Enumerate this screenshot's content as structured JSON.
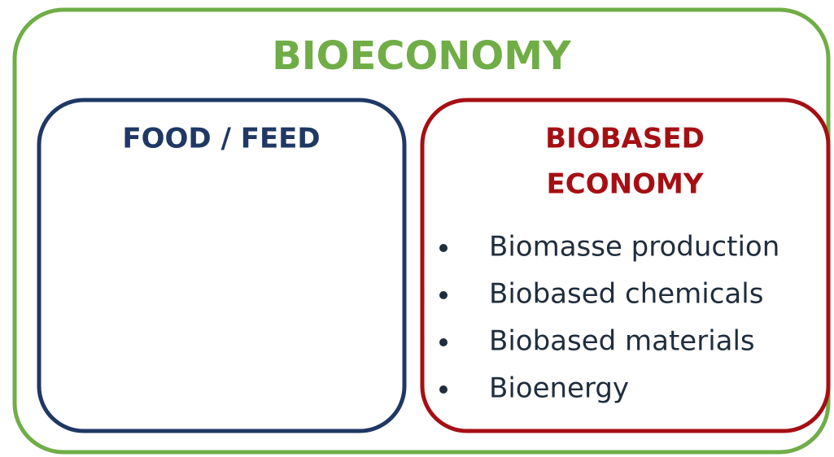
{
  "title": "BIOECONOMY",
  "boxes": [
    {
      "title": "FOOD / FEED",
      "items": []
    },
    {
      "title_lines": [
        "BIOBASED",
        "ECONOMY"
      ],
      "items": [
        "Biomasse production",
        "Biobased chemicals",
        "Biobased materials",
        "Bioenergy"
      ]
    }
  ]
}
